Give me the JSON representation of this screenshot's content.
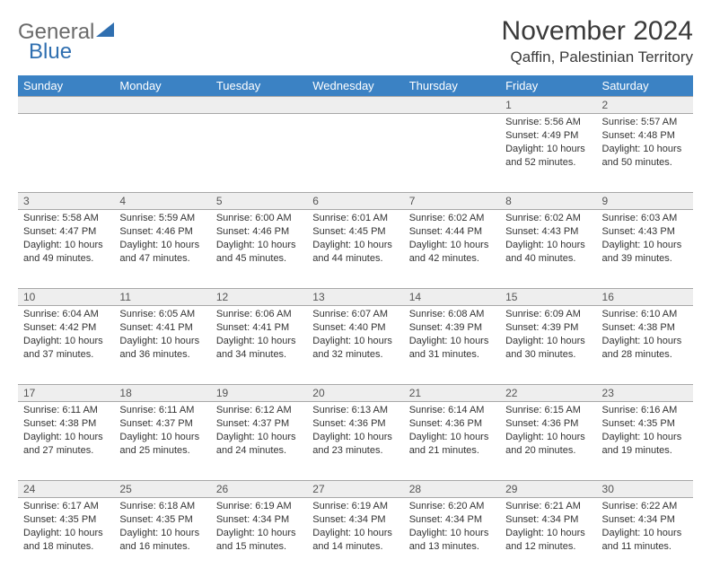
{
  "brand": {
    "word1": "General",
    "word2": "Blue"
  },
  "title": "November 2024",
  "location": "Qaffin, Palestinian Territory",
  "colors": {
    "header_bg": "#3b82c4",
    "header_text": "#ffffff",
    "daynum_bg": "#eeeeee",
    "border": "#a8a8a8",
    "body_text": "#333333",
    "brand_gray": "#6a6a6a",
    "brand_blue": "#2f6fb0"
  },
  "day_headers": [
    "Sunday",
    "Monday",
    "Tuesday",
    "Wednesday",
    "Thursday",
    "Friday",
    "Saturday"
  ],
  "weeks": [
    [
      null,
      null,
      null,
      null,
      null,
      {
        "n": "1",
        "sr": "5:56 AM",
        "ss": "4:49 PM",
        "dl": "10 hours and 52 minutes."
      },
      {
        "n": "2",
        "sr": "5:57 AM",
        "ss": "4:48 PM",
        "dl": "10 hours and 50 minutes."
      }
    ],
    [
      {
        "n": "3",
        "sr": "5:58 AM",
        "ss": "4:47 PM",
        "dl": "10 hours and 49 minutes."
      },
      {
        "n": "4",
        "sr": "5:59 AM",
        "ss": "4:46 PM",
        "dl": "10 hours and 47 minutes."
      },
      {
        "n": "5",
        "sr": "6:00 AM",
        "ss": "4:46 PM",
        "dl": "10 hours and 45 minutes."
      },
      {
        "n": "6",
        "sr": "6:01 AM",
        "ss": "4:45 PM",
        "dl": "10 hours and 44 minutes."
      },
      {
        "n": "7",
        "sr": "6:02 AM",
        "ss": "4:44 PM",
        "dl": "10 hours and 42 minutes."
      },
      {
        "n": "8",
        "sr": "6:02 AM",
        "ss": "4:43 PM",
        "dl": "10 hours and 40 minutes."
      },
      {
        "n": "9",
        "sr": "6:03 AM",
        "ss": "4:43 PM",
        "dl": "10 hours and 39 minutes."
      }
    ],
    [
      {
        "n": "10",
        "sr": "6:04 AM",
        "ss": "4:42 PM",
        "dl": "10 hours and 37 minutes."
      },
      {
        "n": "11",
        "sr": "6:05 AM",
        "ss": "4:41 PM",
        "dl": "10 hours and 36 minutes."
      },
      {
        "n": "12",
        "sr": "6:06 AM",
        "ss": "4:41 PM",
        "dl": "10 hours and 34 minutes."
      },
      {
        "n": "13",
        "sr": "6:07 AM",
        "ss": "4:40 PM",
        "dl": "10 hours and 32 minutes."
      },
      {
        "n": "14",
        "sr": "6:08 AM",
        "ss": "4:39 PM",
        "dl": "10 hours and 31 minutes."
      },
      {
        "n": "15",
        "sr": "6:09 AM",
        "ss": "4:39 PM",
        "dl": "10 hours and 30 minutes."
      },
      {
        "n": "16",
        "sr": "6:10 AM",
        "ss": "4:38 PM",
        "dl": "10 hours and 28 minutes."
      }
    ],
    [
      {
        "n": "17",
        "sr": "6:11 AM",
        "ss": "4:38 PM",
        "dl": "10 hours and 27 minutes."
      },
      {
        "n": "18",
        "sr": "6:11 AM",
        "ss": "4:37 PM",
        "dl": "10 hours and 25 minutes."
      },
      {
        "n": "19",
        "sr": "6:12 AM",
        "ss": "4:37 PM",
        "dl": "10 hours and 24 minutes."
      },
      {
        "n": "20",
        "sr": "6:13 AM",
        "ss": "4:36 PM",
        "dl": "10 hours and 23 minutes."
      },
      {
        "n": "21",
        "sr": "6:14 AM",
        "ss": "4:36 PM",
        "dl": "10 hours and 21 minutes."
      },
      {
        "n": "22",
        "sr": "6:15 AM",
        "ss": "4:36 PM",
        "dl": "10 hours and 20 minutes."
      },
      {
        "n": "23",
        "sr": "6:16 AM",
        "ss": "4:35 PM",
        "dl": "10 hours and 19 minutes."
      }
    ],
    [
      {
        "n": "24",
        "sr": "6:17 AM",
        "ss": "4:35 PM",
        "dl": "10 hours and 18 minutes."
      },
      {
        "n": "25",
        "sr": "6:18 AM",
        "ss": "4:35 PM",
        "dl": "10 hours and 16 minutes."
      },
      {
        "n": "26",
        "sr": "6:19 AM",
        "ss": "4:34 PM",
        "dl": "10 hours and 15 minutes."
      },
      {
        "n": "27",
        "sr": "6:19 AM",
        "ss": "4:34 PM",
        "dl": "10 hours and 14 minutes."
      },
      {
        "n": "28",
        "sr": "6:20 AM",
        "ss": "4:34 PM",
        "dl": "10 hours and 13 minutes."
      },
      {
        "n": "29",
        "sr": "6:21 AM",
        "ss": "4:34 PM",
        "dl": "10 hours and 12 minutes."
      },
      {
        "n": "30",
        "sr": "6:22 AM",
        "ss": "4:34 PM",
        "dl": "10 hours and 11 minutes."
      }
    ]
  ],
  "labels": {
    "sunrise": "Sunrise: ",
    "sunset": "Sunset: ",
    "daylight": "Daylight: "
  }
}
